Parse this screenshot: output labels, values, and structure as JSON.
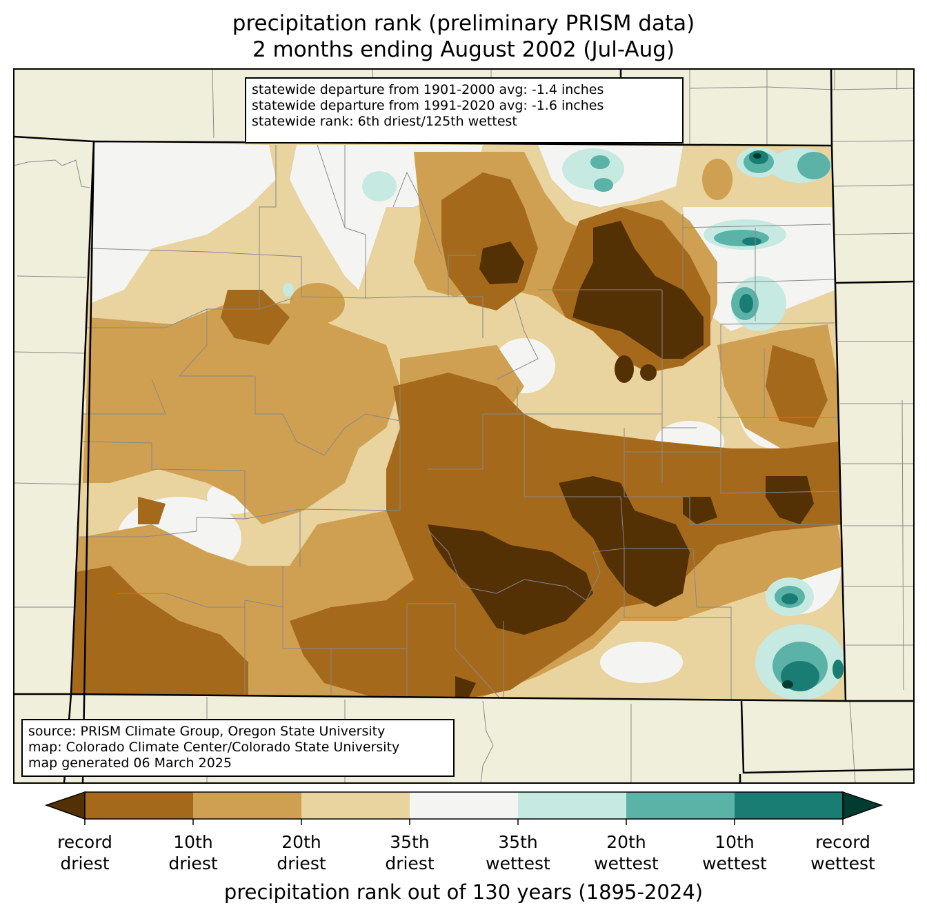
{
  "title": {
    "line1": "precipitation rank (preliminary PRISM data)",
    "line2": "2 months ending August 2002 (Jul-Aug)"
  },
  "stats": [
    "statewide departure from 1901-2000 avg: -1.4 inches",
    "statewide departure from 1991-2020 avg: -1.6 inches",
    "statewide rank: 6th driest/125th wettest"
  ],
  "source": [
    "source: PRISM Climate Group, Oregon State University",
    "map: Colorado Climate Center/Colorado State University",
    "map generated 06 March 2025"
  ],
  "colors": {
    "background_land": "#f0efdc",
    "record_driest": "#543005",
    "driest_10": "#a5691c",
    "driest_20": "#cfa052",
    "driest_35": "#e9d39f",
    "near_normal": "#f4f5f2",
    "wettest_35": "#c6eae2",
    "wettest_20": "#5bb2a7",
    "wettest_10": "#1a7d74",
    "record_wettest": "#003c30"
  },
  "colorbar": {
    "ticks": [
      {
        "line1": "record",
        "line2": "driest"
      },
      {
        "line1": "10th",
        "line2": "driest"
      },
      {
        "line1": "20th",
        "line2": "driest"
      },
      {
        "line1": "35th",
        "line2": "driest"
      },
      {
        "line1": "35th",
        "line2": "wettest"
      },
      {
        "line1": "20th",
        "line2": "wettest"
      },
      {
        "line1": "10th",
        "line2": "wettest"
      },
      {
        "line1": "record",
        "line2": "wettest"
      }
    ],
    "label": "precipitation rank out of 130 years (1895-2024)"
  }
}
